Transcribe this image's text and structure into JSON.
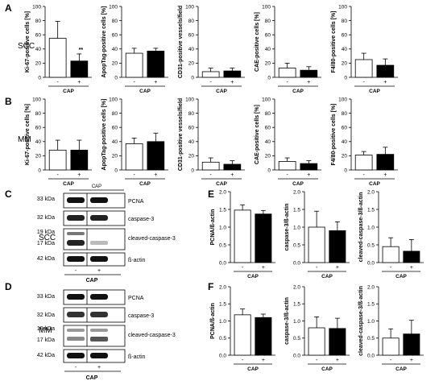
{
  "panel_letters": [
    "A",
    "B",
    "C",
    "D",
    "E",
    "F"
  ],
  "row_labels": {
    "A": "SCC",
    "B": "MM",
    "C": "SCC",
    "D": "MM"
  },
  "x_ticks": [
    "-",
    "+"
  ],
  "group_label": "CAP",
  "colors": {
    "control": "#ffffff",
    "cap": "#000000",
    "axis": "#000000"
  },
  "blots": {
    "C": {
      "kda": [
        "33 kDa",
        "32 kDa",
        "19 kDa",
        "17 kDa",
        "42 kDa"
      ],
      "bands": [
        "PCNA",
        "caspase-3",
        "cleaved-caspase-3",
        "ß-actin"
      ],
      "lanes": [
        "-",
        "+"
      ],
      "group_label": "CAP"
    },
    "D": {
      "kda": [
        "33 kDa",
        "32 kDa",
        "19 kDa",
        "17 kDa",
        "42 kDa"
      ],
      "bands": [
        "PCNA",
        "caspase-3",
        "cleaved-caspase-3",
        "ß-actin"
      ],
      "lanes": [
        "-",
        "+"
      ],
      "group_label": "CAP"
    }
  },
  "chart_data": [
    {
      "panel": "A",
      "type": "bar",
      "ylabel": "Ki-67-positive cells [%]",
      "categories": [
        "-",
        "+"
      ],
      "series": [
        {
          "values": [
            55,
            23
          ],
          "errors": [
            24,
            10
          ]
        }
      ],
      "ylim": [
        0,
        100
      ],
      "yticks": [
        0,
        20,
        40,
        60,
        80,
        100
      ],
      "annotation": "**"
    },
    {
      "panel": "A",
      "type": "bar",
      "ylabel": "ApopTag-positive cells [%]",
      "categories": [
        "-",
        "+"
      ],
      "series": [
        {
          "values": [
            34,
            37
          ],
          "errors": [
            7,
            4
          ]
        }
      ],
      "ylim": [
        0,
        100
      ],
      "yticks": [
        0,
        20,
        40,
        60,
        80,
        100
      ]
    },
    {
      "panel": "A",
      "type": "bar",
      "ylabel": "CD31-positive vessels/field",
      "categories": [
        "-",
        "+"
      ],
      "series": [
        {
          "values": [
            8,
            9
          ],
          "errors": [
            5,
            4
          ]
        }
      ],
      "ylim": [
        0,
        100
      ],
      "yticks": [
        0,
        20,
        40,
        60,
        80,
        100
      ]
    },
    {
      "panel": "A",
      "type": "bar",
      "ylabel": "CAE-positive cells [%]",
      "categories": [
        "-",
        "+"
      ],
      "series": [
        {
          "values": [
            13,
            10
          ],
          "errors": [
            7,
            5
          ]
        }
      ],
      "ylim": [
        0,
        100
      ],
      "yticks": [
        0,
        20,
        40,
        60,
        80,
        100
      ]
    },
    {
      "panel": "A",
      "type": "bar",
      "ylabel": "F4/80-positive cells [%]",
      "categories": [
        "-",
        "+"
      ],
      "series": [
        {
          "values": [
            25,
            17
          ],
          "errors": [
            9,
            9
          ]
        }
      ],
      "ylim": [
        0,
        100
      ],
      "yticks": [
        0,
        20,
        40,
        60,
        80,
        100
      ]
    },
    {
      "panel": "B",
      "type": "bar",
      "ylabel": "Ki-67-positive cells [%]",
      "categories": [
        "-",
        "+"
      ],
      "series": [
        {
          "values": [
            28,
            28
          ],
          "errors": [
            14,
            14
          ]
        }
      ],
      "ylim": [
        0,
        100
      ],
      "yticks": [
        0,
        20,
        40,
        60,
        80,
        100
      ]
    },
    {
      "panel": "B",
      "type": "bar",
      "ylabel": "ApopTag-positive cells [%]",
      "categories": [
        "-",
        "+"
      ],
      "series": [
        {
          "values": [
            37,
            40
          ],
          "errors": [
            8,
            12
          ]
        }
      ],
      "ylim": [
        0,
        100
      ],
      "yticks": [
        0,
        20,
        40,
        60,
        80,
        100
      ]
    },
    {
      "panel": "B",
      "type": "bar",
      "ylabel": "CD31-positive vessels/field",
      "categories": [
        "-",
        "+"
      ],
      "series": [
        {
          "values": [
            11,
            8
          ],
          "errors": [
            6,
            5
          ]
        }
      ],
      "ylim": [
        0,
        100
      ],
      "yticks": [
        0,
        20,
        40,
        60,
        80,
        100
      ]
    },
    {
      "panel": "B",
      "type": "bar",
      "ylabel": "CAE-positive cells [%]",
      "categories": [
        "-",
        "+"
      ],
      "series": [
        {
          "values": [
            12,
            9
          ],
          "errors": [
            5,
            4
          ]
        }
      ],
      "ylim": [
        0,
        100
      ],
      "yticks": [
        0,
        20,
        40,
        60,
        80,
        100
      ]
    },
    {
      "panel": "B",
      "type": "bar",
      "ylabel": "F4/80-positive cells [%]",
      "categories": [
        "-",
        "+"
      ],
      "series": [
        {
          "values": [
            21,
            22
          ],
          "errors": [
            5,
            10
          ]
        }
      ],
      "ylim": [
        0,
        100
      ],
      "yticks": [
        0,
        20,
        40,
        60,
        80,
        100
      ]
    },
    {
      "panel": "E",
      "type": "bar",
      "ylabel": "PCNA/ß-actin",
      "categories": [
        "-",
        "+"
      ],
      "series": [
        {
          "values": [
            1.48,
            1.37
          ],
          "errors": [
            0.15,
            0.1
          ]
        }
      ],
      "ylim": [
        0,
        2.0
      ],
      "yticks": [
        0.0,
        0.5,
        1.0,
        1.5,
        2.0
      ]
    },
    {
      "panel": "E",
      "type": "bar",
      "ylabel": "caspase-3/ß-actin",
      "categories": [
        "-",
        "+"
      ],
      "series": [
        {
          "values": [
            1.0,
            0.9
          ],
          "errors": [
            0.45,
            0.25
          ]
        }
      ],
      "ylim": [
        0,
        2.0
      ],
      "yticks": [
        0.0,
        0.5,
        1.0,
        1.5,
        2.0
      ]
    },
    {
      "panel": "E",
      "type": "bar",
      "ylabel": "cleaved-caspase-3/ß-actin",
      "categories": [
        "-",
        "+"
      ],
      "series": [
        {
          "values": [
            0.45,
            0.32
          ],
          "errors": [
            0.25,
            0.33
          ]
        }
      ],
      "ylim": [
        0,
        2.0
      ],
      "yticks": [
        0.0,
        0.5,
        1.0,
        1.5,
        2.0
      ]
    },
    {
      "panel": "F",
      "type": "bar",
      "ylabel": "PCNA/ß-actin",
      "categories": [
        "-",
        "+"
      ],
      "series": [
        {
          "values": [
            1.18,
            1.1
          ],
          "errors": [
            0.17,
            0.1
          ]
        }
      ],
      "ylim": [
        0,
        2.0
      ],
      "yticks": [
        0.0,
        0.5,
        1.0,
        1.5,
        2.0
      ]
    },
    {
      "panel": "F",
      "type": "bar",
      "ylabel": "caspase-3/ß-actin",
      "categories": [
        "-",
        "+"
      ],
      "series": [
        {
          "values": [
            0.8,
            0.78
          ],
          "errors": [
            0.32,
            0.3
          ]
        }
      ],
      "ylim": [
        0,
        2.0
      ],
      "yticks": [
        0.0,
        0.5,
        1.0,
        1.5,
        2.0
      ]
    },
    {
      "panel": "F",
      "type": "bar",
      "ylabel": "cleaved-caspase-3/ß-actin",
      "categories": [
        "-",
        "+"
      ],
      "series": [
        {
          "values": [
            0.5,
            0.62
          ],
          "errors": [
            0.27,
            0.4
          ]
        }
      ],
      "ylim": [
        0,
        2.0
      ],
      "yticks": [
        0.0,
        0.5,
        1.0,
        1.5,
        2.0
      ]
    }
  ]
}
